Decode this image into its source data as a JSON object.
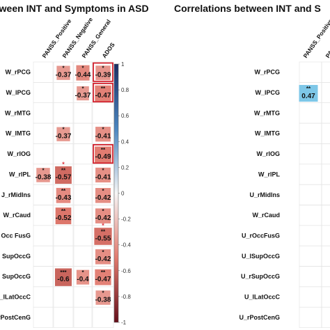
{
  "chart_data": [
    {
      "type": "heatmap",
      "title": "tween INT and Symptoms in ASD",
      "columns": [
        "PANSS_Positive",
        "PANSS_Negative",
        "PANSS_General",
        "ADOS"
      ],
      "rows": [
        "W_rPCG",
        "W_lPCG",
        "W_rMTG",
        "W_lMTG",
        "W_rIOG",
        "W_rIPL",
        "U_rMidIns",
        "W_rCaud",
        "U_rOccFusG",
        "U_lSupOccG",
        "U_rSupOccG",
        "U_lLatOccC",
        "U_rPostCenG"
      ],
      "row_labels": [
        "W_rPCG",
        "W_lPCG",
        "W_rMTG",
        "W_lMTG",
        "W_rlOG",
        "W_rlPL",
        "U_rMidlns",
        "W_rCaud",
        "U_rOccFusG",
        "U_lSupOccG",
        "U_rSupOccG",
        "U_lLatOccC",
        "U_rPostCenG"
      ],
      "row_labels_visible": [
        "W_rPCG",
        "W_lPCG",
        "W_rMTG",
        "W_lMTG",
        "W_rlOG",
        "W_rlPL",
        "J_rMidIns",
        "W_rCaud",
        "Occ FusG",
        "SupOccG",
        "SupOccG",
        "_lLatOccC",
        "_rPostCenG"
      ],
      "cells": [
        {
          "row": 0,
          "col": 1,
          "value": -0.37,
          "stars": "*"
        },
        {
          "row": 0,
          "col": 2,
          "value": -0.44,
          "stars": "*"
        },
        {
          "row": 0,
          "col": 3,
          "value": -0.39,
          "stars": "*"
        },
        {
          "row": 1,
          "col": 2,
          "value": -0.37,
          "stars": "*"
        },
        {
          "row": 1,
          "col": 3,
          "value": -0.47,
          "stars": "**"
        },
        {
          "row": 3,
          "col": 1,
          "value": -0.37,
          "stars": "*"
        },
        {
          "row": 3,
          "col": 3,
          "value": -0.41,
          "stars": "*"
        },
        {
          "row": 4,
          "col": 3,
          "value": -0.49,
          "stars": "**"
        },
        {
          "row": 5,
          "col": 0,
          "value": -0.38,
          "stars": "*"
        },
        {
          "row": 5,
          "col": 1,
          "value": -0.57,
          "stars": "**"
        },
        {
          "row": 5,
          "col": 3,
          "value": -0.41,
          "stars": "*"
        },
        {
          "row": 6,
          "col": 1,
          "value": -0.43,
          "stars": "**"
        },
        {
          "row": 6,
          "col": 3,
          "value": -0.42,
          "stars": "*"
        },
        {
          "row": 7,
          "col": 1,
          "value": -0.52,
          "stars": "**"
        },
        {
          "row": 7,
          "col": 3,
          "value": -0.42,
          "stars": "*"
        },
        {
          "row": 8,
          "col": 3,
          "value": -0.55,
          "stars": "**"
        },
        {
          "row": 9,
          "col": 3,
          "value": -0.42,
          "stars": "*"
        },
        {
          "row": 10,
          "col": 1,
          "value": -0.6,
          "stars": "***"
        },
        {
          "row": 10,
          "col": 2,
          "value": -0.4,
          "stars": "*"
        },
        {
          "row": 10,
          "col": 3,
          "value": -0.47,
          "stars": "**"
        },
        {
          "row": 11,
          "col": 3,
          "value": -0.38,
          "stars": "*"
        }
      ],
      "highlight_cells": [
        {
          "row": 0,
          "col": 3
        },
        {
          "row": 1,
          "col": 3
        },
        {
          "row": 4,
          "col": 3
        }
      ],
      "red_star_cells": [
        {
          "row": 5,
          "col": 1
        },
        {
          "row": 8,
          "col": 3
        }
      ],
      "colorbar_ticks": [
        "1",
        "0.8",
        "0.6",
        "0.4",
        "0.2",
        "0",
        "-0.2",
        "-0.4",
        "-0.6",
        "-0.8",
        "-1"
      ],
      "vlim": [
        -1,
        1
      ]
    },
    {
      "type": "heatmap",
      "title": "Correlations between INT and S",
      "columns": [
        "PANSS_Positive",
        "PANS"
      ],
      "rows": [
        "W_rPCG",
        "W_lPCG",
        "W_rMTG",
        "W_lMTG",
        "W_rIOG",
        "W_rIPL",
        "U_rMidIns",
        "W_rCaud",
        "U_rOccFusG",
        "U_lSupOccG",
        "U_rSupOccG",
        "U_lLatOccC",
        "U_rPostCenG"
      ],
      "row_labels": [
        "W_rPCG",
        "W_lPCG",
        "W_rMTG",
        "W_lMTG",
        "W_rlOG",
        "W_rlPL",
        "U_rMidlns",
        "W_rCaud",
        "U_rOccFusG",
        "U_lSupOccG",
        "U_rSupOccG",
        "U_lLatOccC",
        "U_rPostCenG"
      ],
      "cells": [
        {
          "row": 1,
          "col": 0,
          "value": 0.47,
          "stars": "**"
        }
      ]
    }
  ]
}
